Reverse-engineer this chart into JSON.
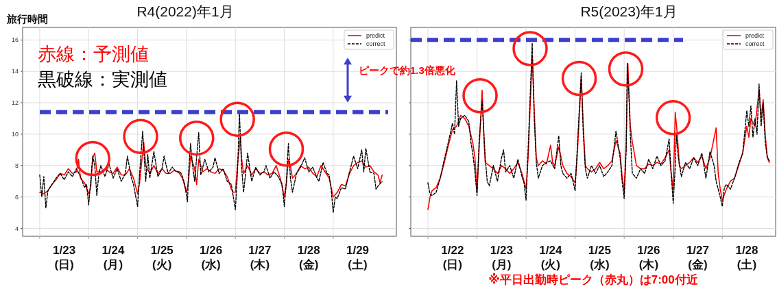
{
  "chart_data": [
    {
      "type": "line",
      "title": "R4(2022)年1月",
      "ylabel": "旅行時間",
      "xlim": [
        "2022-01-22T15:36",
        "2022-01-30T07:00"
      ],
      "ylim": [
        3.5,
        16.8
      ],
      "yticks": [
        4,
        6,
        8,
        10,
        12,
        14,
        16
      ],
      "xticks": [
        {
          "value": "2022-01-23T00:00",
          "label": null
        },
        {
          "value": "2022-01-23T12:00",
          "label": "1/23\n(日)"
        },
        {
          "value": "2022-01-24T00:00",
          "label": null
        },
        {
          "value": "2022-01-24T12:00",
          "label": "1/24\n(月)"
        },
        {
          "value": "2022-01-25T00:00",
          "label": null
        },
        {
          "value": "2022-01-25T12:00",
          "label": "1/25\n(火)"
        },
        {
          "value": "2022-01-26T00:00",
          "label": null
        },
        {
          "value": "2022-01-26T12:00",
          "label": "1/26\n(水)"
        },
        {
          "value": "2022-01-27T00:00",
          "label": null
        },
        {
          "value": "2022-01-27T12:00",
          "label": "1/27\n(木)"
        },
        {
          "value": "2022-01-28T00:00",
          "label": null
        },
        {
          "value": "2022-01-28T12:00",
          "label": "1/28\n(金)"
        },
        {
          "value": "2022-01-29T00:00",
          "label": null
        },
        {
          "value": "2022-01-29T12:00",
          "label": "1/29\n(土)"
        }
      ],
      "grid": true,
      "legend": "top right",
      "ref_lines": [
        {
          "axis": "y",
          "value": 11.4,
          "label": null,
          "color": "#3b3fcc",
          "line_style": "dashed"
        }
      ],
      "annotations": [
        "赤線：予測値",
        "黒破線：実測値"
      ],
      "series": [
        {
          "name": "predict",
          "color": "#ff0000",
          "line_style": "solid",
          "x": [
            "2022-01-23T00:00",
            "2022-01-23T02:00",
            "2022-01-23T04:00",
            "2022-01-23T06:00",
            "2022-01-23T08:00",
            "2022-01-23T10:00",
            "2022-01-23T12:00",
            "2022-01-23T14:00",
            "2022-01-23T16:00",
            "2022-01-23T18:00",
            "2022-01-23T19:00",
            "2022-01-23T20:00",
            "2022-01-23T22:00",
            "2022-01-24T00:00",
            "2022-01-24T01:00",
            "2022-01-24T02:00",
            "2022-01-24T03:00",
            "2022-01-24T04:00",
            "2022-01-24T06:00",
            "2022-01-24T08:00",
            "2022-01-24T10:00",
            "2022-01-24T12:00",
            "2022-01-24T14:00",
            "2022-01-24T16:00",
            "2022-01-24T18:00",
            "2022-01-24T20:00",
            "2022-01-24T22:00",
            "2022-01-25T00:00",
            "2022-01-25T01:00",
            "2022-01-25T03:00",
            "2022-01-25T04:00",
            "2022-01-25T06:00",
            "2022-01-25T08:00",
            "2022-01-25T10:00",
            "2022-01-25T12:00",
            "2022-01-25T14:00",
            "2022-01-25T16:00",
            "2022-01-25T18:00",
            "2022-01-25T20:00",
            "2022-01-25T22:00",
            "2022-01-26T00:00",
            "2022-01-26T01:00",
            "2022-01-26T02:00",
            "2022-01-26T03:00",
            "2022-01-26T04:00",
            "2022-01-26T05:00",
            "2022-01-26T06:00",
            "2022-01-26T08:00",
            "2022-01-26T10:00",
            "2022-01-26T12:00",
            "2022-01-26T14:00",
            "2022-01-26T16:00",
            "2022-01-26T18:00",
            "2022-01-26T20:00",
            "2022-01-26T22:00",
            "2022-01-26T23:00",
            "2022-01-27T00:00",
            "2022-01-27T01:00",
            "2022-01-27T02:30",
            "2022-01-27T03:00",
            "2022-01-27T04:00",
            "2022-01-27T06:00",
            "2022-01-27T08:00",
            "2022-01-27T10:00",
            "2022-01-27T12:00",
            "2022-01-27T14:00",
            "2022-01-27T16:00",
            "2022-01-27T18:00",
            "2022-01-27T20:00",
            "2022-01-27T22:00",
            "2022-01-28T00:00",
            "2022-01-28T01:00",
            "2022-01-28T02:00",
            "2022-01-28T03:00",
            "2022-01-28T04:00",
            "2022-01-28T06:00",
            "2022-01-28T08:00",
            "2022-01-28T10:00",
            "2022-01-28T12:00",
            "2022-01-28T14:00",
            "2022-01-28T16:00",
            "2022-01-28T18:00",
            "2022-01-28T20:00",
            "2022-01-28T22:00",
            "2022-01-29T00:00",
            "2022-01-29T02:00",
            "2022-01-29T04:00",
            "2022-01-29T06:00",
            "2022-01-29T08:00",
            "2022-01-29T10:00",
            "2022-01-29T12:00",
            "2022-01-29T14:00",
            "2022-01-29T16:00",
            "2022-01-29T18:00",
            "2022-01-29T20:00",
            "2022-01-29T22:00",
            "2022-01-29T23:00",
            "2022-01-30T00:00"
          ],
          "values": [
            6.3,
            6.2,
            6.4,
            6.8,
            7.1,
            7.5,
            7.4,
            7.8,
            7.5,
            7.6,
            8.4,
            7.2,
            6.9,
            6.2,
            6.6,
            8.5,
            8.8,
            7.6,
            7.6,
            7.8,
            7.6,
            7.5,
            7.9,
            7.4,
            7.4,
            7.8,
            7.2,
            6.2,
            6.9,
            9.5,
            8.0,
            7.5,
            8.0,
            7.5,
            7.8,
            7.5,
            7.5,
            7.7,
            7.6,
            7.2,
            6.3,
            7.0,
            8.6,
            8.2,
            7.8,
            6.8,
            8.4,
            7.6,
            7.8,
            7.6,
            7.5,
            7.8,
            7.7,
            7.3,
            6.5,
            6.3,
            6.3,
            8.0,
            9.9,
            8.5,
            7.5,
            8.0,
            7.4,
            7.8,
            7.5,
            7.6,
            7.4,
            7.5,
            8.0,
            7.2,
            6.0,
            6.8,
            8.4,
            8.0,
            7.2,
            7.5,
            8.0,
            7.8,
            7.9,
            7.5,
            7.3,
            8.0,
            7.6,
            7.2,
            6.0,
            6.3,
            6.8,
            6.7,
            7.5,
            8.0,
            8.2,
            8.3,
            7.9,
            8.0,
            7.6,
            7.4,
            6.9,
            7.4
          ]
        },
        {
          "name": "correct",
          "color": "#000000",
          "line_style": "dashed",
          "x": [
            "2022-01-23T00:00",
            "2022-01-23T01:00",
            "2022-01-23T02:00",
            "2022-01-23T03:00",
            "2022-01-23T04:00",
            "2022-01-23T06:00",
            "2022-01-23T08:00",
            "2022-01-23T10:00",
            "2022-01-23T12:00",
            "2022-01-23T14:00",
            "2022-01-23T16:00",
            "2022-01-23T18:00",
            "2022-01-23T20:00",
            "2022-01-23T22:00",
            "2022-01-23T23:00",
            "2022-01-24T00:00",
            "2022-01-24T01:00",
            "2022-01-24T02:00",
            "2022-01-24T03:00",
            "2022-01-24T04:00",
            "2022-01-24T05:00",
            "2022-01-24T06:00",
            "2022-01-24T08:00",
            "2022-01-24T10:00",
            "2022-01-24T12:00",
            "2022-01-24T14:00",
            "2022-01-24T16:00",
            "2022-01-24T18:00",
            "2022-01-24T19:00",
            "2022-01-24T21:00",
            "2022-01-24T22:00",
            "2022-01-25T00:00",
            "2022-01-25T01:00",
            "2022-01-25T02:30",
            "2022-01-25T04:00",
            "2022-01-25T05:00",
            "2022-01-25T06:00",
            "2022-01-25T08:00",
            "2022-01-25T10:00",
            "2022-01-25T12:00",
            "2022-01-25T13:00",
            "2022-01-25T15:00",
            "2022-01-25T17:00",
            "2022-01-25T19:00",
            "2022-01-25T21:00",
            "2022-01-25T22:00",
            "2022-01-25T23:00",
            "2022-01-26T00:30",
            "2022-01-26T01:00",
            "2022-01-26T02:00",
            "2022-01-26T03:00",
            "2022-01-26T04:00",
            "2022-01-26T06:00",
            "2022-01-26T07:00",
            "2022-01-26T09:00",
            "2022-01-26T11:00",
            "2022-01-26T13:00",
            "2022-01-26T14:00",
            "2022-01-26T16:00",
            "2022-01-26T18:00",
            "2022-01-26T20:00",
            "2022-01-26T22:00",
            "2022-01-27T00:00",
            "2022-01-27T01:00",
            "2022-01-27T02:00",
            "2022-01-27T03:00",
            "2022-01-27T04:00",
            "2022-01-27T05:00",
            "2022-01-27T06:00",
            "2022-01-27T08:00",
            "2022-01-27T10:00",
            "2022-01-27T12:00",
            "2022-01-27T14:00",
            "2022-01-27T15:00",
            "2022-01-27T17:00",
            "2022-01-27T19:00",
            "2022-01-27T21:00",
            "2022-01-27T23:00",
            "2022-01-28T00:00",
            "2022-01-28T01:00",
            "2022-01-28T02:00",
            "2022-01-28T03:00",
            "2022-01-28T04:00",
            "2022-01-28T06:00",
            "2022-01-28T08:00",
            "2022-01-28T10:00",
            "2022-01-28T12:00",
            "2022-01-28T14:00",
            "2022-01-28T16:00",
            "2022-01-28T17:00",
            "2022-01-28T19:00",
            "2022-01-28T21:00",
            "2022-01-28T22:00",
            "2022-01-28T23:00",
            "2022-01-29T00:00",
            "2022-01-29T01:00",
            "2022-01-29T02:00",
            "2022-01-29T04:00",
            "2022-01-29T06:00",
            "2022-01-29T08:00",
            "2022-01-29T10:00",
            "2022-01-29T12:00",
            "2022-01-29T14:00",
            "2022-01-29T15:00",
            "2022-01-29T16:00",
            "2022-01-29T18:00",
            "2022-01-29T20:00",
            "2022-01-29T21:00",
            "2022-01-29T22:00",
            "2022-01-30T00:00"
          ],
          "values": [
            7.4,
            6.0,
            7.3,
            5.3,
            6.4,
            6.8,
            7.2,
            7.5,
            7.1,
            7.6,
            7.3,
            7.8,
            7.3,
            6.6,
            6.8,
            5.5,
            7.0,
            8.6,
            8.0,
            6.1,
            7.5,
            8.0,
            7.3,
            8.1,
            7.2,
            7.8,
            7.0,
            7.5,
            8.6,
            7.2,
            6.8,
            5.4,
            7.5,
            10.2,
            7.0,
            8.7,
            7.2,
            8.9,
            7.3,
            7.8,
            8.6,
            7.5,
            7.9,
            7.6,
            7.6,
            7.3,
            6.9,
            5.7,
            7.5,
            9.4,
            8.0,
            7.0,
            10.1,
            7.4,
            8.4,
            7.6,
            7.9,
            8.5,
            7.5,
            7.8,
            7.0,
            6.8,
            5.2,
            7.5,
            11.3,
            8.0,
            6.3,
            7.5,
            8.8,
            7.0,
            7.9,
            7.4,
            7.6,
            8.0,
            7.2,
            7.6,
            7.3,
            6.8,
            5.4,
            7.0,
            9.4,
            7.2,
            6.3,
            7.5,
            7.9,
            8.5,
            7.6,
            7.9,
            7.2,
            7.0,
            8.2,
            7.5,
            7.4,
            6.5,
            5.0,
            6.0,
            5.9,
            6.6,
            6.5,
            7.6,
            8.6,
            7.8,
            9.0,
            7.6,
            9.1,
            7.6,
            7.5,
            6.5,
            6.7,
            7.0
          ]
        }
      ]
    },
    {
      "type": "line",
      "title": "R5(2023)年1月",
      "xlim": [
        "2023-01-21T15:36",
        "2023-01-29T02:06"
      ],
      "ylim": [
        3.5,
        16.8
      ],
      "yticks": [
        4,
        6,
        8,
        10,
        12,
        14,
        16
      ],
      "tick_labels": "x",
      "xticks": [
        {
          "value": "2023-01-22T00:00",
          "label": null
        },
        {
          "value": "2023-01-22T12:00",
          "label": "1/22\n(日)"
        },
        {
          "value": "2023-01-23T00:00",
          "label": null
        },
        {
          "value": "2023-01-23T12:00",
          "label": "1/23\n(月)"
        },
        {
          "value": "2023-01-24T00:00",
          "label": null
        },
        {
          "value": "2023-01-24T12:00",
          "label": "1/24\n(火)"
        },
        {
          "value": "2023-01-25T00:00",
          "label": null
        },
        {
          "value": "2023-01-25T12:00",
          "label": "1/25\n(水)"
        },
        {
          "value": "2023-01-26T00:00",
          "label": null
        },
        {
          "value": "2023-01-26T12:00",
          "label": "1/26\n(木)"
        },
        {
          "value": "2023-01-27T00:00",
          "label": null
        },
        {
          "value": "2023-01-27T12:00",
          "label": "1/27\n(金)"
        },
        {
          "value": "2023-01-28T00:00",
          "label": null
        },
        {
          "value": "2023-01-28T12:00",
          "label": "1/28\n(土)"
        }
      ],
      "grid": true,
      "legend": "top right",
      "ref_lines": [
        {
          "axis": "y",
          "value": 16,
          "label": null,
          "color": "#3b3fcc",
          "line_style": "dashed"
        }
      ],
      "annotations": [
        "ピークで約1.3倍悪化",
        "※平日出勤時ピーク（赤丸）は7:00付近"
      ],
      "series": [
        {
          "name": "predict",
          "color": "#ff0000",
          "line_style": "solid",
          "x": [
            "2023-01-22T00:00",
            "2023-01-22T01:00",
            "2023-01-22T02:00",
            "2023-01-22T04:00",
            "2023-01-22T06:00",
            "2023-01-22T08:00",
            "2023-01-22T10:00",
            "2023-01-22T12:00",
            "2023-01-22T14:00",
            "2023-01-22T16:00",
            "2023-01-22T18:00",
            "2023-01-22T20:00",
            "2023-01-22T22:00",
            "2023-01-22T23:00",
            "2023-01-23T00:00",
            "2023-01-23T01:00",
            "2023-01-23T02:30",
            "2023-01-23T03:30",
            "2023-01-23T04:00",
            "2023-01-23T06:00",
            "2023-01-23T08:00",
            "2023-01-23T10:00",
            "2023-01-23T12:00",
            "2023-01-23T14:00",
            "2023-01-23T16:00",
            "2023-01-23T18:00",
            "2023-01-23T20:00",
            "2023-01-23T22:00",
            "2023-01-24T00:00",
            "2023-01-24T01:00",
            "2023-01-24T03:00",
            "2023-01-24T04:00",
            "2023-01-24T05:00",
            "2023-01-24T06:00",
            "2023-01-24T08:00",
            "2023-01-24T10:00",
            "2023-01-24T12:00",
            "2023-01-24T13:00",
            "2023-01-24T14:00",
            "2023-01-24T16:00",
            "2023-01-24T18:00",
            "2023-01-24T20:00",
            "2023-01-24T22:00",
            "2023-01-25T00:00",
            "2023-01-25T01:00",
            "2023-01-25T03:00",
            "2023-01-25T04:00",
            "2023-01-25T05:00",
            "2023-01-25T06:00",
            "2023-01-25T08:00",
            "2023-01-25T10:00",
            "2023-01-25T12:00",
            "2023-01-25T14:00",
            "2023-01-25T16:00",
            "2023-01-25T18:00",
            "2023-01-25T20:00",
            "2023-01-25T22:00",
            "2023-01-25T23:00",
            "2023-01-26T00:00",
            "2023-01-26T01:00",
            "2023-01-26T01:48",
            "2023-01-26T03:00",
            "2023-01-26T04:00",
            "2023-01-26T06:00",
            "2023-01-26T08:00",
            "2023-01-26T10:00",
            "2023-01-26T12:00",
            "2023-01-26T14:00",
            "2023-01-26T16:00",
            "2023-01-26T18:00",
            "2023-01-26T20:00",
            "2023-01-26T22:00",
            "2023-01-26T23:00",
            "2023-01-27T00:00",
            "2023-01-27T01:00",
            "2023-01-27T02:00",
            "2023-01-27T03:00",
            "2023-01-27T04:00",
            "2023-01-27T06:00",
            "2023-01-27T08:00",
            "2023-01-27T10:00",
            "2023-01-27T12:00",
            "2023-01-27T14:00",
            "2023-01-27T16:00",
            "2023-01-27T18:00",
            "2023-01-27T21:00",
            "2023-01-27T22:00",
            "2023-01-27T23:00",
            "2023-01-28T00:00",
            "2023-01-28T02:00",
            "2023-01-28T04:00",
            "2023-01-28T06:00",
            "2023-01-28T08:00",
            "2023-01-28T10:00",
            "2023-01-28T12:00",
            "2023-01-28T13:00",
            "2023-01-28T14:00",
            "2023-01-28T16:00",
            "2023-01-28T18:00",
            "2023-01-28T19:00",
            "2023-01-28T20:00",
            "2023-01-28T21:00",
            "2023-01-28T22:00",
            "2023-01-28T23:00"
          ],
          "values": [
            5.2,
            6.0,
            6.4,
            6.6,
            7.2,
            8.2,
            9.3,
            10.3,
            10.5,
            11.2,
            11.0,
            10.5,
            9.4,
            8.5,
            6.3,
            9.0,
            12.8,
            9.5,
            8.2,
            8.0,
            7.8,
            7.5,
            8.0,
            7.8,
            7.5,
            7.8,
            8.2,
            7.5,
            6.5,
            8.5,
            15.0,
            11.5,
            8.5,
            8.0,
            8.3,
            8.1,
            9.3,
            8.2,
            8.0,
            9.2,
            8.0,
            7.5,
            7.3,
            6.9,
            8.5,
            13.6,
            10.5,
            8.0,
            7.8,
            7.6,
            7.8,
            8.2,
            7.8,
            8.0,
            8.3,
            9.6,
            8.8,
            7.3,
            6.4,
            9.5,
            14.5,
            10.5,
            9.5,
            8.0,
            7.8,
            7.8,
            8.1,
            8.0,
            8.2,
            8.1,
            8.5,
            9.0,
            7.5,
            6.5,
            11.4,
            10.0,
            8.0,
            7.8,
            8.0,
            8.2,
            8.5,
            8.2,
            8.6,
            7.8,
            8.5,
            10.4,
            7.5,
            6.5,
            5.8,
            6.5,
            7.0,
            7.2,
            8.0,
            8.8,
            10.5,
            9.8,
            11.0,
            10.5,
            12.8,
            11.0,
            12.2,
            10.0,
            8.5,
            8.2
          ]
        },
        {
          "name": "correct",
          "color": "#000000",
          "line_style": "dashed",
          "x": [
            "2023-01-22T00:00",
            "2023-01-22T01:00",
            "2023-01-22T02:00",
            "2023-01-22T04:00",
            "2023-01-22T06:00",
            "2023-01-22T08:00",
            "2023-01-22T10:00",
            "2023-01-22T12:00",
            "2023-01-22T13:00",
            "2023-01-22T14:00",
            "2023-01-22T15:00",
            "2023-01-22T16:00",
            "2023-01-22T18:00",
            "2023-01-22T20:00",
            "2023-01-22T21:00",
            "2023-01-22T22:00",
            "2023-01-22T23:00",
            "2023-01-23T00:00",
            "2023-01-23T01:00",
            "2023-01-23T02:30",
            "2023-01-23T04:00",
            "2023-01-23T05:00",
            "2023-01-23T06:00",
            "2023-01-23T08:00",
            "2023-01-23T10:00",
            "2023-01-23T12:00",
            "2023-01-23T13:00",
            "2023-01-23T14:00",
            "2023-01-23T16:00",
            "2023-01-23T18:00",
            "2023-01-23T20:00",
            "2023-01-23T22:00",
            "2023-01-23T23:00",
            "2023-01-24T00:00",
            "2023-01-24T01:00",
            "2023-01-24T03:00",
            "2023-01-24T04:00",
            "2023-01-24T05:00",
            "2023-01-24T06:00",
            "2023-01-24T08:00",
            "2023-01-24T10:00",
            "2023-01-24T12:00",
            "2023-01-24T14:00",
            "2023-01-24T16:00",
            "2023-01-24T17:00",
            "2023-01-24T18:00",
            "2023-01-24T20:00",
            "2023-01-24T22:00",
            "2023-01-24T23:00",
            "2023-01-25T00:00",
            "2023-01-25T01:00",
            "2023-01-25T03:00",
            "2023-01-25T04:00",
            "2023-01-25T05:00",
            "2023-01-25T06:00",
            "2023-01-25T08:00",
            "2023-01-25T10:00",
            "2023-01-25T12:00",
            "2023-01-25T14:00",
            "2023-01-25T16:00",
            "2023-01-25T18:00",
            "2023-01-25T20:00",
            "2023-01-25T22:00",
            "2023-01-25T23:00",
            "2023-01-26T00:00",
            "2023-01-26T01:00",
            "2023-01-26T01:30",
            "2023-01-26T02:30",
            "2023-01-26T03:00",
            "2023-01-26T04:00",
            "2023-01-26T06:00",
            "2023-01-26T08:00",
            "2023-01-26T10:00",
            "2023-01-26T12:00",
            "2023-01-26T14:00",
            "2023-01-26T16:00",
            "2023-01-26T18:00",
            "2023-01-26T20:00",
            "2023-01-26T22:00",
            "2023-01-26T23:00",
            "2023-01-27T00:00",
            "2023-01-27T01:00",
            "2023-01-27T01:30",
            "2023-01-27T02:30",
            "2023-01-27T04:00",
            "2023-01-27T06:00",
            "2023-01-27T08:00",
            "2023-01-27T10:00",
            "2023-01-27T12:00",
            "2023-01-27T14:00",
            "2023-01-27T16:00",
            "2023-01-27T18:00",
            "2023-01-27T20:00",
            "2023-01-27T21:00",
            "2023-01-27T23:00",
            "2023-01-28T00:00",
            "2023-01-28T01:00",
            "2023-01-28T02:00",
            "2023-01-28T04:00",
            "2023-01-28T06:00",
            "2023-01-28T08:00",
            "2023-01-28T10:00",
            "2023-01-28T12:00",
            "2023-01-28T13:00",
            "2023-01-28T14:00",
            "2023-01-28T15:00",
            "2023-01-28T16:00",
            "2023-01-28T17:00",
            "2023-01-28T18:00",
            "2023-01-28T19:00",
            "2023-01-28T20:00",
            "2023-01-28T21:00",
            "2023-01-28T22:00",
            "2023-01-28T23:00"
          ],
          "values": [
            6.9,
            6.2,
            6.1,
            6.3,
            7.2,
            8.4,
            9.5,
            10.7,
            10.0,
            13.4,
            10.5,
            11.0,
            11.2,
            10.8,
            9.5,
            8.7,
            7.6,
            6.1,
            9.5,
            12.1,
            8.5,
            7.0,
            6.7,
            8.0,
            7.0,
            8.5,
            9.0,
            7.6,
            8.0,
            7.2,
            8.4,
            7.3,
            6.9,
            5.8,
            9.0,
            15.8,
            11.0,
            8.2,
            7.2,
            8.0,
            8.2,
            8.3,
            7.8,
            9.9,
            8.0,
            7.5,
            7.2,
            7.5,
            7.0,
            6.4,
            9.0,
            13.9,
            10.0,
            7.8,
            7.2,
            8.0,
            7.5,
            8.0,
            7.3,
            7.6,
            8.0,
            10.2,
            8.5,
            7.0,
            5.9,
            9.0,
            14.5,
            12.0,
            10.0,
            7.5,
            7.2,
            7.8,
            7.5,
            8.4,
            7.8,
            8.6,
            8.0,
            8.3,
            9.7,
            7.5,
            5.6,
            8.0,
            10.0,
            8.5,
            7.3,
            8.2,
            7.8,
            8.5,
            8.0,
            8.8,
            7.2,
            8.9,
            8.0,
            7.0,
            6.0,
            5.4,
            6.6,
            6.8,
            6.5,
            7.2,
            8.1,
            8.8,
            11.5,
            10.5,
            11.8,
            9.8,
            11.0,
            10.0,
            13.2,
            10.5,
            12.0,
            9.5,
            8.6,
            8.3
          ]
        }
      ]
    }
  ]
}
